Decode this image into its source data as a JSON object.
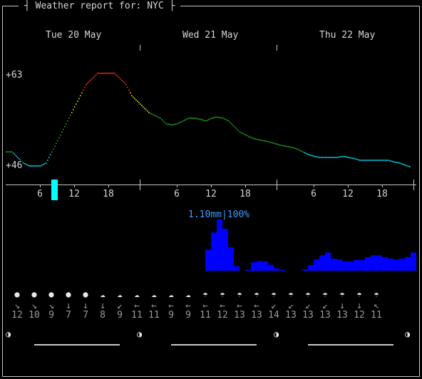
{
  "window": {
    "title": "Weather report for: NYC"
  },
  "days": [
    "Tue 20 May",
    "Wed 21 May",
    "Thu 22 May"
  ],
  "temperature": {
    "ymax_label": "+63",
    "ymin_label": "+46",
    "unit": "°F"
  },
  "hour_ticks": [
    "6",
    "12",
    "18",
    "6",
    "12",
    "18",
    "6",
    "12",
    "18"
  ],
  "precip": {
    "label": "1.10mm|100%"
  },
  "chart_data": [
    {
      "type": "line",
      "title": "",
      "xlabel": "",
      "ylabel": "",
      "ylim": [
        46,
        63
      ],
      "x_unit": "hour",
      "x": [
        0,
        1,
        2,
        3,
        4,
        5,
        6,
        7,
        8,
        9,
        10,
        11,
        12,
        13,
        14,
        15,
        16,
        17,
        18,
        19,
        20,
        21,
        22,
        23,
        24,
        25,
        26,
        27,
        28,
        29,
        30,
        31,
        32,
        33,
        34,
        35,
        36,
        37,
        38,
        39,
        40,
        41,
        42,
        43,
        44,
        45,
        46,
        47,
        48,
        49,
        50,
        51,
        52,
        53,
        54,
        55,
        56,
        57,
        58,
        59,
        60,
        61,
        62,
        63,
        64,
        65,
        66,
        67,
        68,
        69,
        70,
        71
      ],
      "values": [
        49,
        49,
        48,
        47,
        46.5,
        46.5,
        46.5,
        47,
        49,
        51,
        53,
        55,
        57,
        59,
        61,
        62,
        63,
        63,
        63,
        63,
        62,
        61,
        59,
        58,
        57,
        56,
        55.5,
        55,
        54,
        53.8,
        54,
        54.5,
        55,
        55,
        54.8,
        54.5,
        55,
        55.2,
        55,
        54.5,
        53.5,
        52.5,
        52,
        51.5,
        51.2,
        51,
        50.8,
        50.5,
        50.2,
        50,
        49.8,
        49.5,
        49,
        48.5,
        48.2,
        48,
        48,
        48,
        48,
        48.2,
        48,
        47.8,
        47.5,
        47.5,
        47.5,
        47.5,
        47.5,
        47.5,
        47.2,
        47,
        46.6,
        46.3
      ]
    },
    {
      "type": "bar",
      "title": "",
      "xlabel": "",
      "ylabel": "",
      "unit": "mm",
      "x_unit": "hour",
      "x": [
        0,
        1,
        2,
        3,
        4,
        5,
        6,
        7,
        8,
        9,
        10,
        11,
        12,
        13,
        14,
        15,
        16,
        17,
        18,
        19,
        20,
        21,
        22,
        23,
        24,
        25,
        26,
        27,
        28,
        29,
        30,
        31,
        32,
        33,
        34,
        35,
        36,
        37,
        38,
        39,
        40,
        41,
        42,
        43,
        44,
        45,
        46,
        47,
        48,
        49,
        50,
        51,
        52,
        53,
        54,
        55,
        56,
        57,
        58,
        59,
        60,
        61,
        62,
        63,
        64,
        65,
        66,
        67,
        68,
        69,
        70,
        71
      ],
      "values": [
        0,
        0,
        0,
        0,
        0,
        0,
        0,
        0,
        0,
        0,
        0,
        0,
        0,
        0,
        0,
        0,
        0,
        0,
        0,
        0,
        0,
        0,
        0,
        0,
        0,
        0,
        0,
        0,
        0,
        0,
        0,
        0,
        0,
        0,
        0,
        0.45,
        0.82,
        1.1,
        0.9,
        0.5,
        0.1,
        0,
        0.02,
        0.18,
        0.21,
        0.2,
        0.13,
        0.05,
        0.02,
        0,
        0,
        0,
        0.03,
        0.12,
        0.24,
        0.33,
        0.39,
        0.26,
        0.24,
        0.2,
        0.2,
        0.23,
        0.23,
        0.29,
        0.33,
        0.33,
        0.29,
        0.26,
        0.24,
        0.26,
        0.29,
        0.39
      ]
    }
  ],
  "weather_columns": [
    {
      "icon": "●",
      "arrow": "↘",
      "speed": "12"
    },
    {
      "icon": "●",
      "arrow": "↘",
      "speed": "10"
    },
    {
      "icon": "●",
      "arrow": "↘",
      "speed": "9"
    },
    {
      "icon": "●",
      "arrow": "↓",
      "speed": "7"
    },
    {
      "icon": "●",
      "arrow": "↓",
      "speed": "7"
    },
    {
      "icon": "☁",
      "arrow": "↓",
      "speed": "8"
    },
    {
      "icon": "☁",
      "arrow": "↙",
      "speed": "9"
    },
    {
      "icon": "☁",
      "arrow": "←",
      "speed": "11"
    },
    {
      "icon": "☁",
      "arrow": "←",
      "speed": "11"
    },
    {
      "icon": "☁",
      "arrow": "←",
      "speed": "9"
    },
    {
      "icon": "☁",
      "arrow": "←",
      "speed": "9"
    },
    {
      "icon": "☂",
      "arrow": "←",
      "speed": "11"
    },
    {
      "icon": "☂",
      "arrow": "←",
      "speed": "12"
    },
    {
      "icon": "☂",
      "arrow": "←",
      "speed": "13"
    },
    {
      "icon": "☂",
      "arrow": "←",
      "speed": "13"
    },
    {
      "icon": "☂",
      "arrow": "↙",
      "speed": "14"
    },
    {
      "icon": "☂",
      "arrow": "↙",
      "speed": "13"
    },
    {
      "icon": "☂",
      "arrow": "↙",
      "speed": "13"
    },
    {
      "icon": "☂",
      "arrow": "↙",
      "speed": "13"
    },
    {
      "icon": "☂",
      "arrow": "↓",
      "speed": "13"
    },
    {
      "icon": "☂",
      "arrow": "↓",
      "speed": "12"
    },
    {
      "icon": "☂",
      "arrow": "↖",
      "speed": "11"
    }
  ],
  "moon_phase_icon": "◑",
  "colors": {
    "background": "#000000",
    "temp_cold": "#00e5ff",
    "temp_cool": "#1fa51f",
    "temp_warm": "#e0e000",
    "temp_hot": "#ff3030",
    "precip": "#0000ff",
    "precip_label": "#3d9cff",
    "now_marker": "#00ffff",
    "frame": "#c8c8c8"
  }
}
